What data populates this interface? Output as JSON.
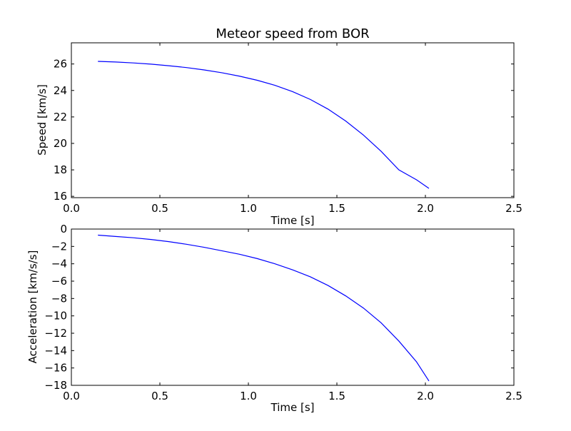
{
  "figure": {
    "title": "Meteor speed from  BOR"
  },
  "colors": {
    "line": "#0000ff",
    "axes": "#000000",
    "background": "#ffffff"
  },
  "chart_data": [
    {
      "type": "line",
      "title": "Meteor speed from  BOR",
      "xlabel": "Time [s]",
      "ylabel": "Speed [km/s]",
      "xlim": [
        0.0,
        2.5
      ],
      "ylim": [
        15.9,
        27.6
      ],
      "xticks": [
        "0.0",
        "0.5",
        "1.0",
        "1.5",
        "2.0",
        "2.5"
      ],
      "xtick_values": [
        0.0,
        0.5,
        1.0,
        1.5,
        2.0,
        2.5
      ],
      "yticks": [
        "16",
        "18",
        "20",
        "22",
        "24",
        "26"
      ],
      "ytick_values": [
        16,
        18,
        20,
        22,
        24,
        26
      ],
      "grid": false,
      "series": [
        {
          "x": [
            0.15,
            0.25,
            0.35,
            0.45,
            0.55,
            0.65,
            0.75,
            0.85,
            0.95,
            1.05,
            1.15,
            1.25,
            1.35,
            1.45,
            1.55,
            1.65,
            1.75,
            1.85,
            1.95,
            2.02
          ],
          "y": [
            26.2,
            26.15,
            26.08,
            25.99,
            25.87,
            25.73,
            25.55,
            25.34,
            25.08,
            24.77,
            24.39,
            23.91,
            23.32,
            22.59,
            21.69,
            20.63,
            19.4,
            18.0,
            17.25,
            16.6
          ]
        }
      ]
    },
    {
      "type": "line",
      "title": "",
      "xlabel": "Time [s]",
      "ylabel": "Acceleration [km/s/s]",
      "xlim": [
        0.0,
        2.5
      ],
      "ylim": [
        -18,
        0
      ],
      "xticks": [
        "0.0",
        "0.5",
        "1.0",
        "1.5",
        "2.0",
        "2.5"
      ],
      "xtick_values": [
        0.0,
        0.5,
        1.0,
        1.5,
        2.0,
        2.5
      ],
      "yticks": [
        "0",
        "−2",
        "−4",
        "−6",
        "−8",
        "−10",
        "−12",
        "−14",
        "−16",
        "−18"
      ],
      "ytick_values": [
        0,
        -2,
        -4,
        -6,
        -8,
        -10,
        -12,
        -14,
        -16,
        -18
      ],
      "grid": false,
      "series": [
        {
          "x": [
            0.15,
            0.25,
            0.35,
            0.45,
            0.55,
            0.65,
            0.75,
            0.85,
            0.95,
            1.05,
            1.15,
            1.25,
            1.35,
            1.45,
            1.55,
            1.65,
            1.75,
            1.85,
            1.95,
            2.02
          ],
          "y": [
            -0.7,
            -0.85,
            -1.0,
            -1.2,
            -1.45,
            -1.75,
            -2.1,
            -2.5,
            -2.9,
            -3.4,
            -4.0,
            -4.7,
            -5.5,
            -6.5,
            -7.7,
            -9.1,
            -10.8,
            -12.9,
            -15.3,
            -17.5
          ]
        }
      ]
    }
  ]
}
